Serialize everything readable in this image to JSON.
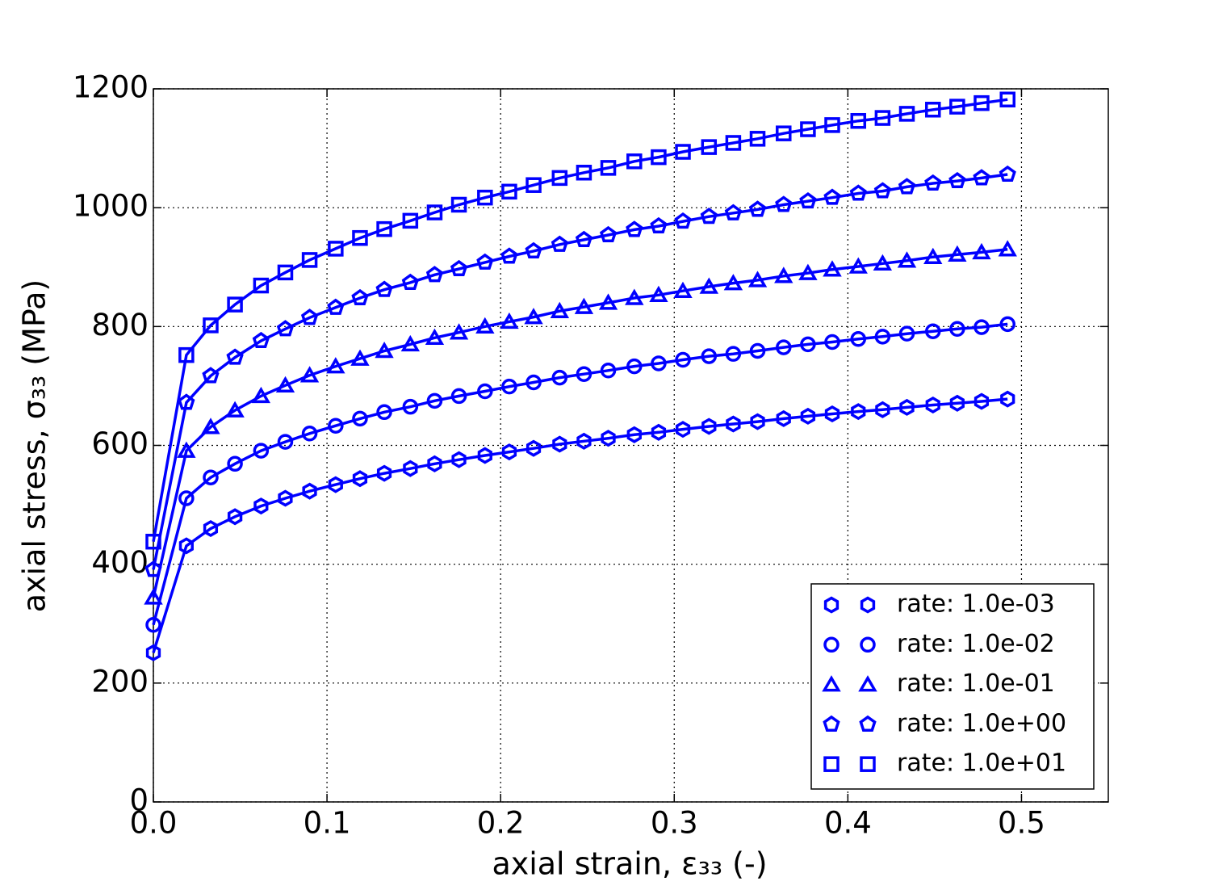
{
  "chart_data": {
    "type": "line",
    "xlabel": "axial strain, ε₃₃ (-)",
    "ylabel": "axial stress, σ₃₃ (MPa)",
    "x": [
      0,
      0.019,
      0.033,
      0.047,
      0.062,
      0.076,
      0.09,
      0.105,
      0.119,
      0.133,
      0.148,
      0.162,
      0.176,
      0.191,
      0.205,
      0.219,
      0.234,
      0.248,
      0.262,
      0.277,
      0.291,
      0.305,
      0.32,
      0.334,
      0.348,
      0.363,
      0.377,
      0.391,
      0.406,
      0.42,
      0.434,
      0.449,
      0.463,
      0.477,
      0.492
    ],
    "series": [
      {
        "name": "rate: 1.0e-03",
        "color": "#0000ff",
        "marker": "hexagon",
        "values": [
          251,
          431,
          460,
          480,
          498,
          511,
          523,
          534,
          544,
          553,
          561,
          569,
          576,
          583,
          589,
          595,
          602,
          607,
          612,
          618,
          622,
          627,
          632,
          636,
          640,
          645,
          649,
          653,
          657,
          660,
          664,
          668,
          671,
          674,
          678
        ]
      },
      {
        "name": "rate: 1.0e-02",
        "color": "#0000ff",
        "marker": "circle",
        "values": [
          298,
          511,
          546,
          569,
          591,
          606,
          620,
          633,
          645,
          656,
          665,
          675,
          683,
          691,
          699,
          706,
          714,
          720,
          726,
          733,
          738,
          744,
          750,
          754,
          759,
          765,
          770,
          774,
          779,
          783,
          788,
          792,
          796,
          799,
          804
        ]
      },
      {
        "name": "rate: 1.0e-01",
        "color": "#0000ff",
        "marker": "triangle",
        "values": [
          344,
          591,
          631,
          659,
          683,
          701,
          718,
          733,
          746,
          759,
          770,
          781,
          790,
          800,
          808,
          816,
          826,
          833,
          840,
          848,
          853,
          860,
          867,
          873,
          878,
          885,
          890,
          896,
          901,
          906,
          911,
          917,
          921,
          925,
          930
        ]
      },
      {
        "name": "rate: 1.0e+00",
        "color": "#0000ff",
        "marker": "pentagon",
        "values": [
          391,
          672,
          717,
          748,
          776,
          796,
          815,
          832,
          848,
          862,
          874,
          887,
          897,
          908,
          918,
          927,
          938,
          946,
          954,
          963,
          969,
          977,
          985,
          991,
          997,
          1005,
          1011,
          1017,
          1024,
          1028,
          1035,
          1041,
          1045,
          1050,
          1056
        ]
      },
      {
        "name": "rate: 1.0e+01",
        "color": "#0000ff",
        "marker": "square",
        "values": [
          438,
          752,
          802,
          837,
          869,
          891,
          912,
          931,
          949,
          964,
          978,
          992,
          1005,
          1017,
          1027,
          1038,
          1050,
          1059,
          1067,
          1078,
          1085,
          1094,
          1102,
          1109,
          1116,
          1125,
          1132,
          1139,
          1146,
          1151,
          1158,
          1165,
          1170,
          1176,
          1182
        ]
      }
    ],
    "xlim": [
      0,
      0.55
    ],
    "xticks": [
      {
        "value": 0,
        "label": "0.0"
      },
      0.1,
      0.2,
      0.3,
      0.4,
      0.5
    ],
    "ylim": [
      0,
      1200
    ],
    "yticks": [
      0,
      200,
      400,
      600,
      800,
      1000,
      1200
    ],
    "grid": true,
    "legend": "lower-right"
  }
}
